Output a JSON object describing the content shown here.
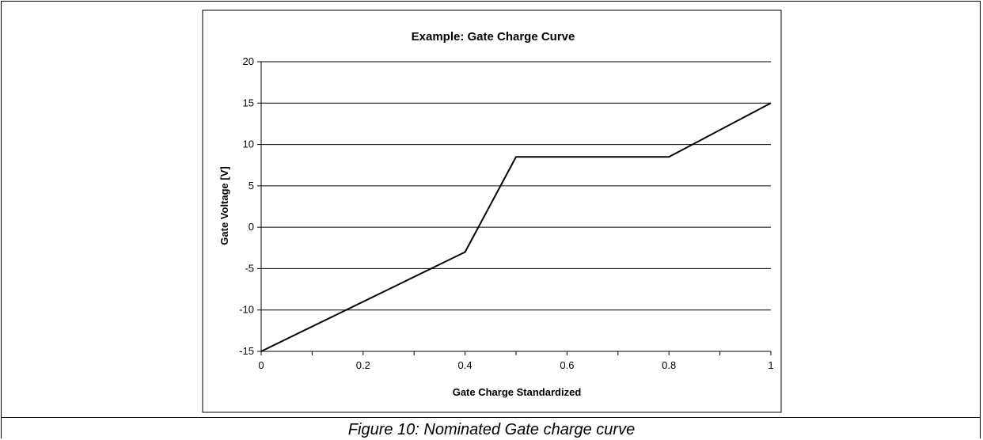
{
  "chart_data": {
    "type": "line",
    "title": "Example: Gate Charge Curve",
    "xlabel": "Gate Charge Standardized",
    "ylabel": "Gate Voltage [V]",
    "xlim": [
      0,
      1
    ],
    "ylim": [
      -15,
      20
    ],
    "x_ticks": [
      "0",
      "0.2",
      "0.4",
      "0.6",
      "0.8",
      "1"
    ],
    "y_ticks": [
      "20",
      "15",
      "10",
      "5",
      "0",
      "-5",
      "-10",
      "-15"
    ],
    "grid": "horizontal",
    "line_color": "#000000",
    "series": [
      {
        "x": [
          0,
          0.4,
          0.5,
          0.8,
          1
        ],
        "y": [
          -15,
          -3,
          8.5,
          8.5,
          15
        ]
      }
    ]
  },
  "caption": "Figure 10: Nominated Gate charge curve"
}
